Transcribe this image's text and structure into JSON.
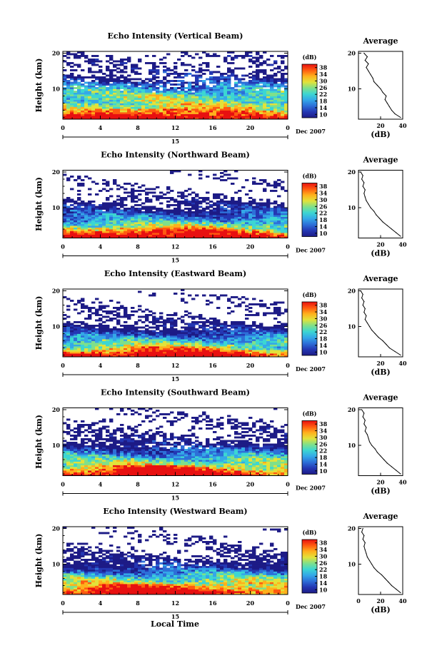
{
  "figure": {
    "xlabel": "Local Time",
    "date_month": "Dec 2007",
    "date_day": "15",
    "colorbar_unit": "(dB)",
    "colorbar_ticks": [
      "10",
      "14",
      "18",
      "22",
      "26",
      "30",
      "34",
      "38"
    ],
    "average_title": "Average",
    "average_xlabel": "(dB)",
    "colors": {
      "background": "#ffffff",
      "colormap": [
        "#1d1b86",
        "#2437b3",
        "#2d6fd8",
        "#34a8e8",
        "#3cd6d2",
        "#7fe08a",
        "#e2e23a",
        "#ffb01c",
        "#ff5a10",
        "#e81010"
      ]
    }
  },
  "chart_data": [
    {
      "type": "heatmap",
      "title": "Echo Intensity (Vertical Beam)",
      "ylabel": "Height (km)",
      "xlabel": "Local Time",
      "x_ticks": [
        "0",
        "4",
        "8",
        "12",
        "16",
        "20",
        "0"
      ],
      "y_ticks": [
        "10",
        "20"
      ],
      "xlim": [
        0,
        24
      ],
      "ylim": [
        1.5,
        20.5
      ],
      "colorbar": {
        "label": "(dB)",
        "range": [
          10,
          38
        ]
      },
      "profile": {
        "title": "Average",
        "xlabel": "(dB)",
        "x_ticks": [
          "20",
          "40"
        ],
        "y_ticks": [
          "10",
          "20"
        ],
        "heights": [
          2,
          3,
          4,
          5,
          6,
          7,
          8,
          9,
          10,
          11,
          12,
          13,
          14,
          15,
          16,
          17,
          18,
          19,
          20
        ],
        "values": [
          38,
          33,
          30,
          28,
          26,
          24,
          25,
          22,
          20,
          17,
          14,
          13,
          11,
          9,
          7,
          9,
          6,
          8,
          5
        ]
      }
    },
    {
      "type": "heatmap",
      "title": "Echo Intensity (Northward Beam)",
      "ylabel": "Height (km)",
      "xlabel": "Local Time",
      "x_ticks": [
        "0",
        "4",
        "8",
        "12",
        "16",
        "20",
        "0"
      ],
      "y_ticks": [
        "10",
        "20"
      ],
      "xlim": [
        0,
        24
      ],
      "ylim": [
        1.5,
        20.5
      ],
      "colorbar": {
        "label": "(dB)",
        "range": [
          10,
          38
        ]
      },
      "profile": {
        "title": "Average",
        "xlabel": "(dB)",
        "x_ticks": [
          "20",
          "40"
        ],
        "y_ticks": [
          "10",
          "20"
        ],
        "heights": [
          2,
          3,
          4,
          5,
          6,
          7,
          8,
          9,
          10,
          11,
          12,
          13,
          14,
          15,
          16,
          17,
          18,
          19,
          20
        ],
        "values": [
          38,
          34,
          30,
          26,
          22,
          19,
          16,
          14,
          11,
          9,
          7,
          6,
          5,
          6,
          4,
          5,
          3,
          4,
          2
        ]
      }
    },
    {
      "type": "heatmap",
      "title": "Echo Intensity (Eastward Beam)",
      "ylabel": "Height (km)",
      "xlabel": "Local Time",
      "x_ticks": [
        "0",
        "4",
        "8",
        "12",
        "16",
        "20",
        "0"
      ],
      "y_ticks": [
        "10",
        "20"
      ],
      "xlim": [
        0,
        24
      ],
      "ylim": [
        1.5,
        20.5
      ],
      "colorbar": {
        "label": "(dB)",
        "range": [
          10,
          38
        ]
      },
      "profile": {
        "title": "Average",
        "xlabel": "(dB)",
        "x_ticks": [
          "20",
          "40"
        ],
        "y_ticks": [
          "10",
          "20"
        ],
        "heights": [
          2,
          3,
          4,
          5,
          6,
          7,
          8,
          9,
          10,
          11,
          12,
          13,
          14,
          15,
          16,
          17,
          18,
          19,
          20
        ],
        "values": [
          38,
          33,
          28,
          25,
          22,
          18,
          15,
          12,
          10,
          8,
          6,
          7,
          5,
          6,
          4,
          5,
          3,
          4,
          2
        ]
      }
    },
    {
      "type": "heatmap",
      "title": "Echo Intensity (Southward Beam)",
      "ylabel": "Height (km)",
      "xlabel": "Local Time",
      "x_ticks": [
        "0",
        "4",
        "8",
        "12",
        "16",
        "20",
        "0"
      ],
      "y_ticks": [
        "10",
        "20"
      ],
      "xlim": [
        0,
        24
      ],
      "ylim": [
        1.5,
        20.5
      ],
      "colorbar": {
        "label": "(dB)",
        "range": [
          10,
          38
        ]
      },
      "profile": {
        "title": "Average",
        "xlabel": "(dB)",
        "x_ticks": [
          "20",
          "40"
        ],
        "y_ticks": [
          "10",
          "20"
        ],
        "heights": [
          2,
          3,
          4,
          5,
          6,
          7,
          8,
          9,
          10,
          11,
          12,
          13,
          14,
          15,
          16,
          17,
          18,
          19,
          20
        ],
        "values": [
          38,
          34,
          30,
          26,
          23,
          20,
          17,
          15,
          12,
          10,
          9,
          8,
          6,
          7,
          5,
          6,
          4,
          5,
          3
        ]
      }
    },
    {
      "type": "heatmap",
      "title": "Echo Intensity (Westward Beam)",
      "ylabel": "Height (km)",
      "xlabel": "Local Time",
      "x_ticks": [
        "0",
        "4",
        "8",
        "12",
        "16",
        "20",
        "0"
      ],
      "y_ticks": [
        "10",
        "20"
      ],
      "xlim": [
        0,
        24
      ],
      "ylim": [
        1.5,
        20.5
      ],
      "colorbar": {
        "label": "(dB)",
        "range": [
          10,
          38
        ]
      },
      "profile": {
        "title": "Average",
        "xlabel": "(dB)",
        "x_ticks": [
          "0",
          "20",
          "40"
        ],
        "y_ticks": [
          "10",
          "20"
        ],
        "heights": [
          2,
          3,
          4,
          5,
          6,
          7,
          8,
          9,
          10,
          11,
          12,
          13,
          14,
          15,
          16,
          17,
          18,
          19,
          20
        ],
        "values": [
          38,
          34,
          30,
          27,
          24,
          21,
          17,
          14,
          12,
          10,
          8,
          7,
          6,
          5,
          6,
          4,
          5,
          3,
          4
        ]
      }
    }
  ]
}
